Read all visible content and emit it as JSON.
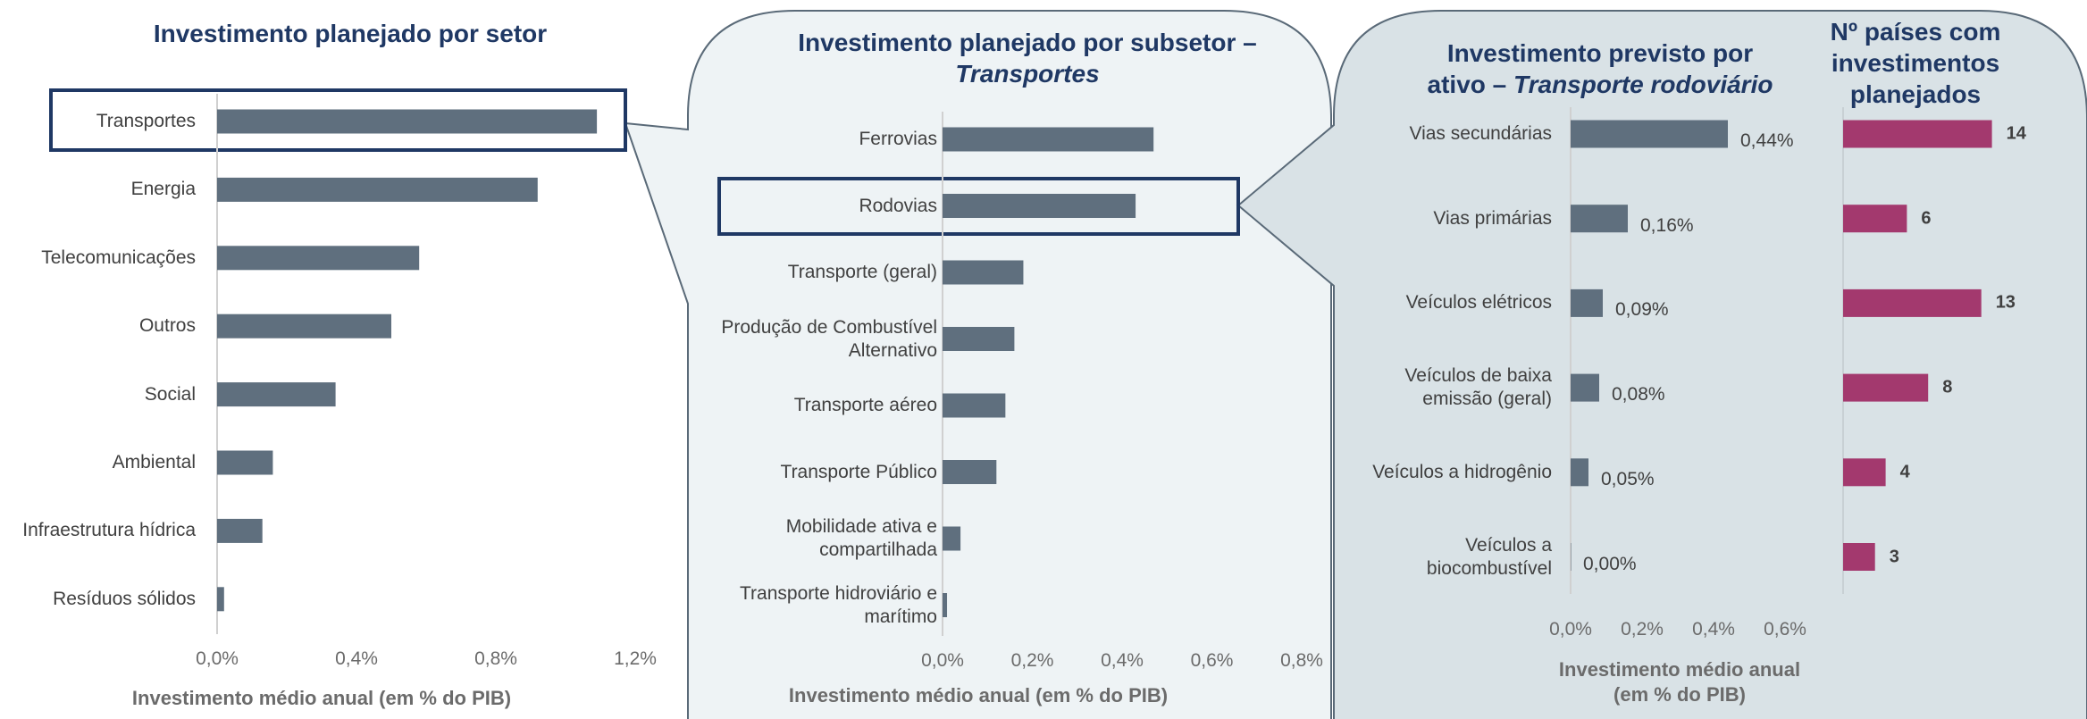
{
  "chart_data": [
    {
      "type": "bar",
      "orientation": "horizontal",
      "title": "Investimento planejado por setor",
      "categories": [
        "Transportes",
        "Energia",
        "Telecomunicações",
        "Outros",
        "Social",
        "Ambiental",
        "Infraestrutura hídrica",
        "Resíduos sólidos"
      ],
      "values": [
        1.09,
        0.92,
        0.58,
        0.5,
        0.34,
        0.16,
        0.13,
        0.02
      ],
      "color": "#5f6f7e",
      "xlim": [
        0,
        1.2
      ],
      "xticks": [
        {
          "value": 0,
          "label": "0,0%"
        },
        {
          "value": 0.4,
          "label": "0,4%"
        },
        {
          "value": 0.8,
          "label": "0,8%"
        },
        {
          "value": 1.2,
          "label": "1,2%"
        }
      ],
      "x_label": "Investimento médio anual (em % do PIB)"
    },
    {
      "type": "bar",
      "orientation": "horizontal",
      "title": "Investimento planejado por subsetor –",
      "title_emphasis": "Transportes",
      "categories": [
        "Ferrovias",
        "Rodovias",
        "Transporte (geral)",
        "Produção de Combustível\nAlternativo",
        "Transporte aéreo",
        "Transporte Público",
        "Mobilidade ativa e\ncompartilhada",
        "Transporte hidroviário e\nmarítimo"
      ],
      "values": [
        0.47,
        0.43,
        0.18,
        0.16,
        0.14,
        0.12,
        0.04,
        0.01
      ],
      "color": "#5f6f7e",
      "xlim": [
        0,
        0.8
      ],
      "xticks": [
        {
          "value": 0,
          "label": "0,0%"
        },
        {
          "value": 0.2,
          "label": "0,2%"
        },
        {
          "value": 0.4,
          "label": "0,4%"
        },
        {
          "value": 0.6,
          "label": "0,6%"
        },
        {
          "value": 0.8,
          "label": "0,8%"
        }
      ],
      "x_label": "Investimento médio anual (em % do PIB)"
    },
    {
      "type": "bar",
      "orientation": "horizontal",
      "title": "Investimento previsto por\nativo –",
      "title_emphasis": "Transporte rodoviário",
      "categories": [
        "Vias secundárias",
        "Vias primárias",
        "Veículos elétricos",
        "Veículos de baixa\nemissão (geral)",
        "Veículos a hidrogênio",
        "Veículos a\nbiocombustível"
      ],
      "values": [
        0.44,
        0.16,
        0.09,
        0.08,
        0.05,
        0.0
      ],
      "value_labels": [
        "0,44%",
        "0,16%",
        "0,09%",
        "0,08%",
        "0,05%",
        "0,00%"
      ],
      "color": "#5f6f7e",
      "xlim": [
        0,
        0.6
      ],
      "xticks": [
        {
          "value": 0,
          "label": "0,0%"
        },
        {
          "value": 0.2,
          "label": "0,2%"
        },
        {
          "value": 0.4,
          "label": "0,4%"
        },
        {
          "value": 0.6,
          "label": "0,6%"
        }
      ],
      "x_label": "Investimento médio anual\n(em % do PIB)"
    },
    {
      "type": "bar",
      "orientation": "horizontal",
      "title": "Nº países com\ninvestimentos\nplanejados",
      "values": [
        14,
        6,
        13,
        8,
        4,
        3
      ],
      "color": "#a3396e"
    }
  ]
}
